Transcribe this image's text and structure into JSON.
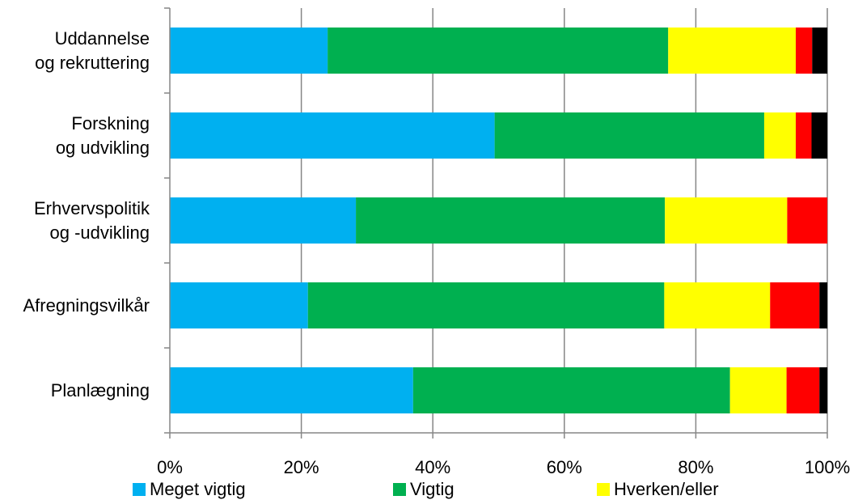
{
  "chart_data": {
    "type": "bar",
    "orientation": "horizontal",
    "stacked": true,
    "categories": [
      [
        "Uddannelse",
        "og rekruttering"
      ],
      [
        "Forskning",
        "og udvikling"
      ],
      [
        "Erhvervspolitik",
        "og -udvikling"
      ],
      [
        "Afregningsvilkår"
      ],
      [
        "Planlægning"
      ]
    ],
    "series": [
      {
        "name": "Meget vigtig",
        "color": "#00B0F0",
        "values": [
          24,
          49.4,
          28.3,
          21,
          37
        ]
      },
      {
        "name": "Vigtig",
        "color": "#00B050",
        "values": [
          51.8,
          41,
          47,
          54.2,
          48.2
        ]
      },
      {
        "name": "Hverken/eller",
        "color": "#FFFF00",
        "values": [
          19.4,
          4.8,
          18.6,
          16.1,
          8.6
        ]
      },
      {
        "color": "#FF0000",
        "values": [
          2.5,
          2.4,
          6.1,
          7.5,
          5
        ]
      },
      {
        "color": "#000000",
        "values": [
          2.3,
          2.4,
          0,
          1.2,
          1.2
        ]
      }
    ],
    "xaxis": {
      "min": 0,
      "max": 100,
      "ticks": [
        "0%",
        "20%",
        "40%",
        "60%",
        "80%",
        "100%"
      ]
    },
    "grid": true,
    "legend_position": "bottom"
  }
}
